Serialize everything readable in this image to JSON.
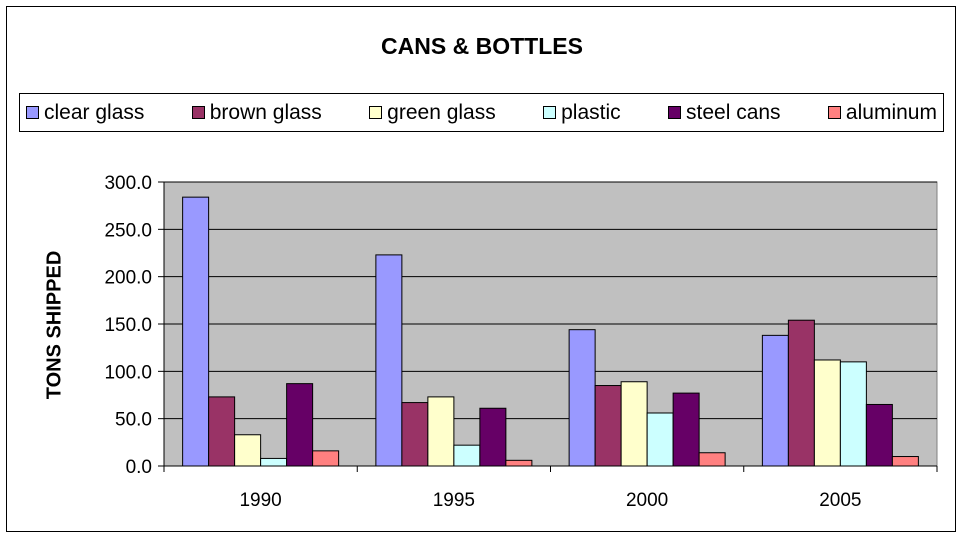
{
  "chart_data": {
    "type": "bar",
    "title": "CANS & BOTTLES",
    "xlabel": "",
    "ylabel": "TONS SHIPPED",
    "categories": [
      "1990",
      "1995",
      "2000",
      "2005"
    ],
    "ylim": [
      0,
      300
    ],
    "yticks": [
      "0.0",
      "50.0",
      "100.0",
      "150.0",
      "200.0",
      "250.0",
      "300.0"
    ],
    "grid": true,
    "legend_position": "top",
    "plot_background": "#c0c0c0",
    "series": [
      {
        "name": "clear glass",
        "color": "#9999ff",
        "values": [
          284,
          223,
          144,
          138
        ]
      },
      {
        "name": "brown glass",
        "color": "#993366",
        "values": [
          73,
          67,
          85,
          154
        ]
      },
      {
        "name": "green glass",
        "color": "#ffffcc",
        "values": [
          33,
          73,
          89,
          112
        ]
      },
      {
        "name": "plastic",
        "color": "#ccffff",
        "values": [
          8,
          22,
          56,
          110
        ]
      },
      {
        "name": "steel cans",
        "color": "#660066",
        "values": [
          87,
          61,
          77,
          65
        ]
      },
      {
        "name": "aluminum",
        "color": "#ff8080",
        "values": [
          16,
          6,
          14,
          10
        ]
      }
    ]
  }
}
